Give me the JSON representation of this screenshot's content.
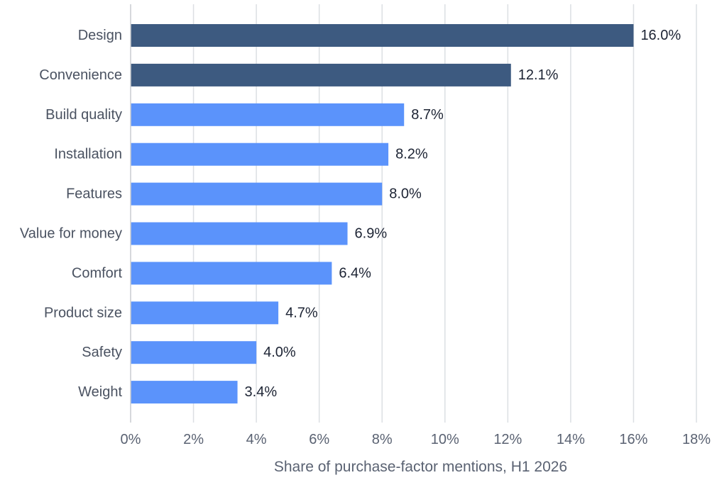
{
  "chart_data": {
    "type": "bar",
    "orientation": "horizontal",
    "categories": [
      "Design",
      "Convenience",
      "Build quality",
      "Installation",
      "Features",
      "Value for money",
      "Comfort",
      "Product size",
      "Safety",
      "Weight"
    ],
    "values": [
      16.0,
      12.1,
      8.7,
      8.2,
      8.0,
      6.9,
      6.4,
      4.7,
      4.0,
      3.4
    ],
    "value_labels": [
      "16.0%",
      "12.1%",
      "8.7%",
      "8.2%",
      "8.0%",
      "6.9%",
      "6.4%",
      "4.7%",
      "4.0%",
      "3.4%"
    ],
    "highlight_count": 2,
    "colors": {
      "highlight": "#3d5a80",
      "default": "#5b93fb"
    },
    "xlabel": "Share of purchase-factor mentions, H1 2026",
    "ylabel": "",
    "xlim": [
      0,
      18
    ],
    "xticks": [
      0,
      2,
      4,
      6,
      8,
      10,
      12,
      14,
      16,
      18
    ],
    "xtick_labels": [
      "0%",
      "2%",
      "4%",
      "6%",
      "8%",
      "10%",
      "12%",
      "14%",
      "16%",
      "18%"
    ],
    "grid": "vertical",
    "legend": "none"
  }
}
